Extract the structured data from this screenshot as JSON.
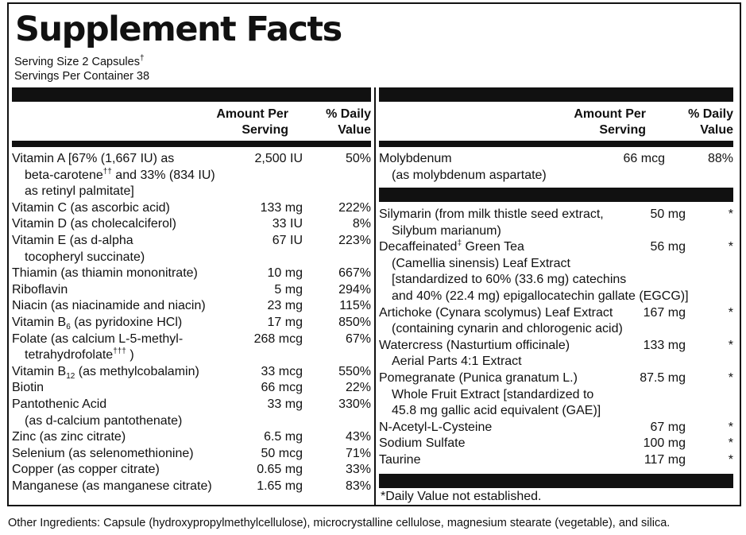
{
  "title": "Supplement Facts",
  "serving_size": "Serving Size 2 Capsules",
  "serving_size_mark": "†",
  "servings_per_container": "Servings Per Container 38",
  "headers": {
    "amount_1": "Amount Per",
    "amount_2": "Serving",
    "dv_1": "% Daily",
    "dv_2": "Value"
  },
  "left_rows": [
    {
      "name": "Vitamin A [67% (1,667 IU) as",
      "amount": "2,500 IU",
      "dv": "50%"
    },
    {
      "name": "beta-carotene",
      "mark": "††",
      "rest": " and 33% (834 IU)"
    },
    {
      "name": "as retinyl palmitate]"
    },
    {
      "name": "Vitamin C (as ascorbic acid)",
      "amount": "133 mg",
      "dv": "222%"
    },
    {
      "name": "Vitamin D (as cholecalciferol)",
      "amount": "33 IU",
      "dv": "8%"
    },
    {
      "name": "Vitamin E (as d-alpha",
      "amount": "67 IU",
      "dv": "223%"
    },
    {
      "name": "tocopheryl succinate)"
    },
    {
      "name": "Thiamin (as thiamin mononitrate)",
      "amount": "10 mg",
      "dv": "667%"
    },
    {
      "name": "Riboflavin",
      "amount": "5 mg",
      "dv": "294%"
    },
    {
      "name": "Niacin (as niacinamide and niacin)",
      "amount": "23 mg",
      "dv": "115%"
    },
    {
      "name": "Vitamin B",
      "sub": "6",
      "rest": " (as pyridoxine HCl)",
      "amount": "17 mg",
      "dv": "850%"
    },
    {
      "name": "Folate (as calcium L-5-methyl-",
      "amount": "268 mcg",
      "dv": "67%"
    },
    {
      "name": "tetrahydrofolate",
      "mark": "†††",
      "rest": " )"
    },
    {
      "name": "Vitamin B",
      "sub": "12",
      "rest": " (as methylcobalamin)",
      "amount": "33 mcg",
      "dv": "550%"
    },
    {
      "name": "Biotin",
      "amount": "66 mcg",
      "dv": "22%"
    },
    {
      "name": "Pantothenic Acid",
      "amount": "33 mg",
      "dv": "330%"
    },
    {
      "name": "(as d-calcium pantothenate)"
    },
    {
      "name": "Zinc (as zinc citrate)",
      "amount": "6.5 mg",
      "dv": "43%"
    },
    {
      "name": "Selenium (as selenomethionine)",
      "amount": "50 mcg",
      "dv": "71%"
    },
    {
      "name": "Copper (as copper citrate)",
      "amount": "0.65 mg",
      "dv": "33%"
    },
    {
      "name": "Manganese (as manganese citrate)",
      "amount": "1.65 mg",
      "dv": "83%"
    }
  ],
  "right_top": [
    {
      "name": "Molybdenum",
      "amount": "66 mcg",
      "dv": "88%"
    },
    {
      "name": "(as molybdenum aspartate)"
    }
  ],
  "right_rows": [
    {
      "name": "Silymarin (from milk thistle seed extract,",
      "amount": "50 mg",
      "dv": "*"
    },
    {
      "name": "Silybum marianum)"
    },
    {
      "name": "Decaffeinated",
      "mark": "‡",
      "rest": " Green Tea",
      "amount": "56 mg",
      "dv": "*"
    },
    {
      "name": "(Camellia sinensis) Leaf Extract"
    },
    {
      "name": "[standardized to 60% (33.6 mg) catechins"
    },
    {
      "name": "and 40% (22.4 mg) epigallocatechin gallate (EGCG)]"
    },
    {
      "name": "Artichoke (Cynara scolymus) Leaf Extract",
      "amount": "167 mg",
      "dv": "*"
    },
    {
      "name": "(containing cynarin and chlorogenic acid)"
    },
    {
      "name": "Watercress (Nasturtium officinale)",
      "amount": "133 mg",
      "dv": "*"
    },
    {
      "name": "Aerial Parts 4:1 Extract"
    },
    {
      "name": "Pomegranate (Punica granatum L.)",
      "amount": "87.5 mg",
      "dv": "*"
    },
    {
      "name": "Whole Fruit Extract [standardized to"
    },
    {
      "name": "45.8 mg gallic acid equivalent (GAE)]"
    },
    {
      "name": "N-Acetyl-L-Cysteine",
      "amount": "67 mg",
      "dv": "*"
    },
    {
      "name": "Sodium Sulfate",
      "amount": "100 mg",
      "dv": "*"
    },
    {
      "name": "Taurine",
      "amount": "117 mg",
      "dv": "*"
    }
  ],
  "footnote": "*Daily Value not established.",
  "other_ingredients": "Other Ingredients: Capsule (hydroxypropylmethylcellulose), microcrystalline cellulose, magnesium stearate (vegetable), and silica."
}
